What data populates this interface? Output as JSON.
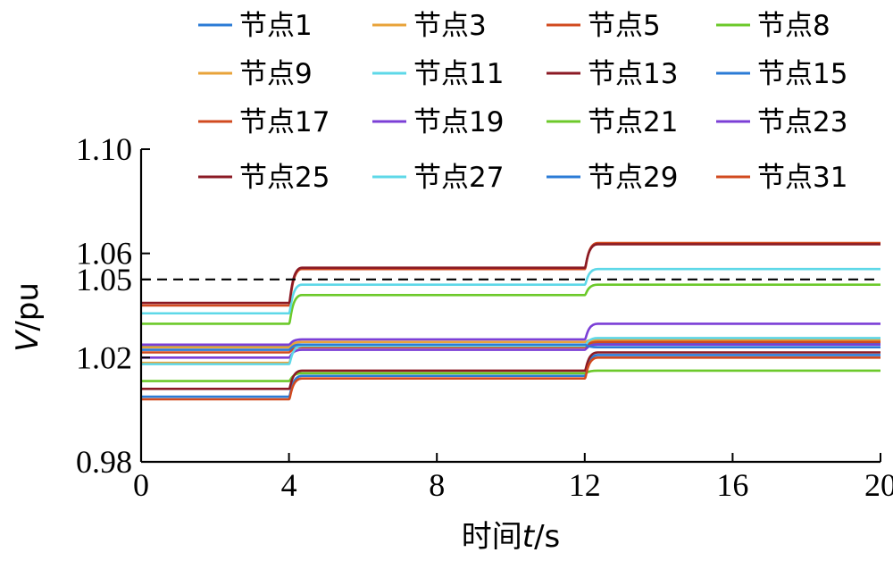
{
  "chart_data": {
    "type": "line",
    "xlabel_prefix": "时间",
    "xlabel_var": "t",
    "xlabel_unit": "/s",
    "ylabel_var": "V",
    "ylabel_unit": "/pu",
    "xlim": [
      0,
      20
    ],
    "ylim": [
      0.98,
      1.1
    ],
    "xticks": [
      0,
      4,
      8,
      12,
      16,
      20
    ],
    "yticks": [
      0.98,
      1.02,
      1.05,
      1.06,
      1.1
    ],
    "ytick_labels": [
      "0.98",
      "1.02",
      "1.05",
      "1.06",
      "1.10"
    ],
    "grid": false,
    "legend_position": "top",
    "step_times": [
      4,
      12
    ],
    "reference_line": {
      "y": 1.05,
      "style": "dashed",
      "color": "#000000"
    },
    "series": [
      {
        "name": "节点1",
        "color": "#2b7bd6",
        "levels": [
          1.0245,
          1.025,
          1.0255
        ]
      },
      {
        "name": "节点3",
        "color": "#e8a33a",
        "levels": [
          1.024,
          1.026,
          1.027
        ]
      },
      {
        "name": "节点5",
        "color": "#d14a1f",
        "levels": [
          1.04,
          1.054,
          1.064
        ]
      },
      {
        "name": "节点8",
        "color": "#6cc92a",
        "levels": [
          1.033,
          1.044,
          1.048
        ]
      },
      {
        "name": "节点9",
        "color": "#e8a33a",
        "levels": [
          1.018,
          1.0245,
          1.0265
        ]
      },
      {
        "name": "节点11",
        "color": "#5ed8e8",
        "levels": [
          1.037,
          1.048,
          1.054
        ]
      },
      {
        "name": "节点13",
        "color": "#8b1a24",
        "levels": [
          1.041,
          1.0545,
          1.0635
        ]
      },
      {
        "name": "节点15",
        "color": "#2b7bd6",
        "levels": [
          1.005,
          1.013,
          1.021
        ]
      },
      {
        "name": "节点17",
        "color": "#d14a1f",
        "levels": [
          1.022,
          1.024,
          1.026
        ]
      },
      {
        "name": "节点19",
        "color": "#7b3fd6",
        "levels": [
          1.02,
          1.023,
          1.025
        ]
      },
      {
        "name": "节点21",
        "color": "#6cc92a",
        "levels": [
          1.011,
          1.014,
          1.015
        ]
      },
      {
        "name": "节点23",
        "color": "#7b3fd6",
        "levels": [
          1.025,
          1.027,
          1.033
        ]
      },
      {
        "name": "节点25",
        "color": "#8b1a24",
        "levels": [
          1.008,
          1.015,
          1.022
        ]
      },
      {
        "name": "节点27",
        "color": "#5ed8e8",
        "levels": [
          1.0175,
          1.0245,
          1.0275
        ]
      },
      {
        "name": "节点29",
        "color": "#2b7bd6",
        "levels": [
          1.023,
          1.025,
          1.024
        ]
      },
      {
        "name": "节点31",
        "color": "#d14a1f",
        "levels": [
          1.004,
          1.012,
          1.02
        ]
      }
    ]
  }
}
